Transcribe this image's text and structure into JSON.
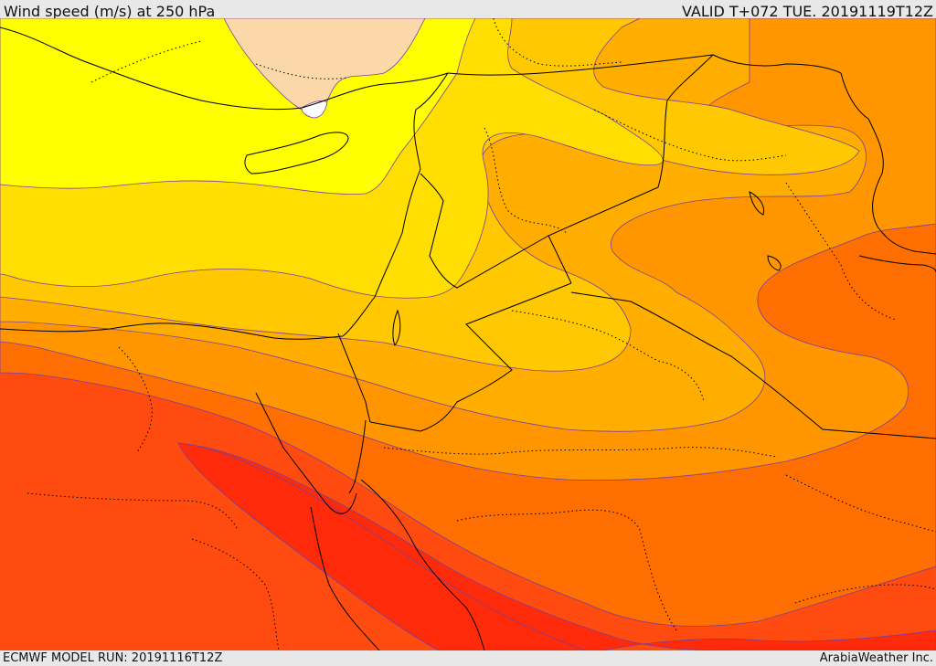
{
  "header": {
    "title": "Wind speed (m/s) at 250 hPa",
    "valid": "VALID T+072 TUE. 20191119T12Z"
  },
  "footer": {
    "model_run": "ECMWF MODEL RUN: 20191116T12Z",
    "credit": "ArabiaWeather Inc."
  },
  "map": {
    "field": "wind speed",
    "level": "250 hPa",
    "palette": {
      "light_peach": "#fcd8a8",
      "yellow": "#ffff00",
      "gold_light": "#ffde00",
      "gold": "#ffc800",
      "amber": "#ffae00",
      "orange": "#ff9600",
      "dark_orange": "#ff6e00",
      "red_orange": "#ff4a10",
      "red": "#ff2a0a",
      "white": "#ffffff"
    }
  }
}
